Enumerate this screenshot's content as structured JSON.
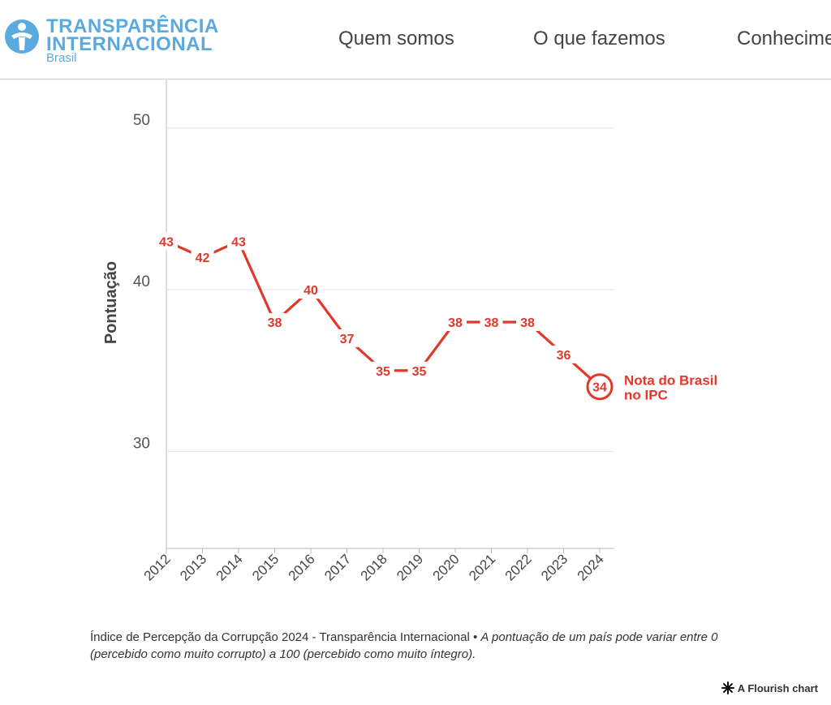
{
  "header": {
    "logo": {
      "line1": "TRANSPARÊNCIA",
      "line2": "INTERNACIONAL",
      "sub": "Brasil",
      "color": "#5aaae0"
    },
    "nav": [
      {
        "label": "Quem somos"
      },
      {
        "label": "O que fazemos"
      },
      {
        "label": "Conhecime"
      }
    ]
  },
  "chart_data": {
    "type": "line",
    "title": "",
    "xlabel": "",
    "ylabel": "Pontuação",
    "x": [
      "2012",
      "2013",
      "2014",
      "2015",
      "2016",
      "2017",
      "2018",
      "2019",
      "2020",
      "2021",
      "2022",
      "2023",
      "2024"
    ],
    "series": [
      {
        "name": "Brasil",
        "values": [
          43,
          42,
          43,
          38,
          40,
          37,
          35,
          35,
          38,
          38,
          38,
          36,
          34
        ],
        "color": "#e0392b"
      }
    ],
    "ylim": [
      24,
      53
    ],
    "yticks": [
      30,
      40,
      50
    ],
    "grid": true,
    "annotation": {
      "line1": "Nota do Brasil",
      "line2": "no IPC",
      "target_year": "2024"
    }
  },
  "caption": {
    "source": "Índice de Percepção da Corrupção 2024 - Transparência Internacional",
    "separator": " • ",
    "note": "A pontuação de um país pode variar entre 0 (percebido como muito corrupto) a 100 (percebido como muito íntegro)."
  },
  "credit": {
    "label": "A Flourish chart"
  }
}
